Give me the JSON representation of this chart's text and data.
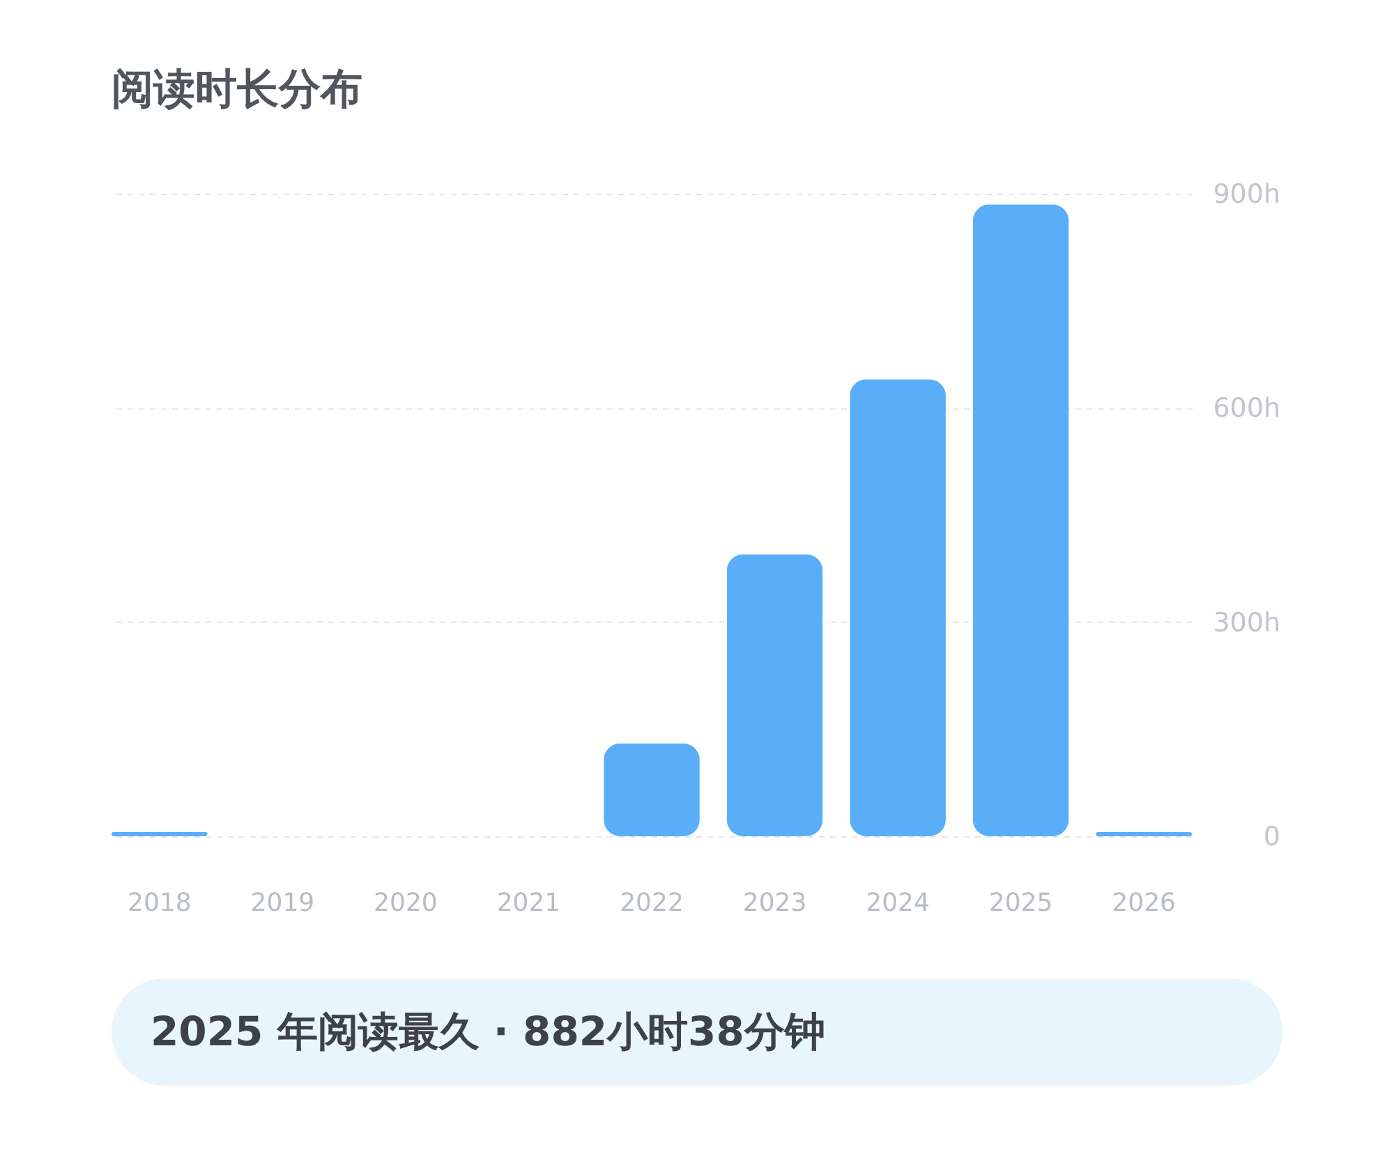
{
  "chart_data": {
    "type": "bar",
    "title": "阅读时长分布",
    "categories": [
      "2018",
      "2019",
      "2020",
      "2021",
      "2022",
      "2023",
      "2024",
      "2025",
      "2026"
    ],
    "values": [
      6,
      null,
      null,
      null,
      130,
      395,
      640,
      885,
      6
    ],
    "color": "#5aaef8",
    "ylim": [
      0,
      900
    ],
    "yticks": [
      0,
      {
        "value": 300,
        "label": "300h"
      },
      {
        "value": 600,
        "label": "600h"
      },
      {
        "value": 900,
        "label": "900h"
      }
    ],
    "grid": "y",
    "annotations": [
      "2025 年阅读最久 · 882小时38分钟"
    ]
  }
}
